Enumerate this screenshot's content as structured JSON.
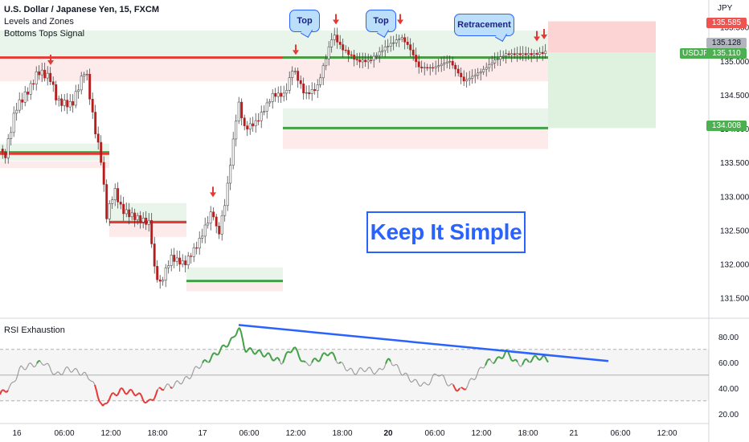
{
  "legend": {
    "title": "U.S. Dollar / Japanese Yen, 15, FXCM",
    "indicators": [
      "Levels and Zones",
      "Bottoms Tops Signal"
    ]
  },
  "rsi_panel": {
    "label": "RSI Exhaustion"
  },
  "annotations": {
    "callouts": [
      "Top",
      "Top",
      "Retracement"
    ],
    "headline": "Keep It Simple"
  },
  "price_scale": {
    "currency": "JPY",
    "tags": {
      "stop": "135.585",
      "current": "135.128",
      "symbol_label": "USDJPY",
      "symbol_price": "135.110",
      "target": "134.008"
    }
  },
  "colors": {
    "up": "#26a69a",
    "down": "#ef5350",
    "resistance": "#e53935",
    "support": "#43a047",
    "trendline": "#2962ff",
    "rsi_neutral": "#9e9e9e"
  },
  "chart_data": [
    {
      "type": "candlestick",
      "title": "U.S. Dollar / Japanese Yen, 15, FXCM",
      "ylim": [
        131.2,
        135.9
      ],
      "y_ticks": [
        "131.500",
        "132.000",
        "132.500",
        "133.000",
        "133.500",
        "134.000",
        "134.500",
        "135.000",
        "135.500"
      ],
      "x_ticks": [
        "16",
        "06:00",
        "12:00",
        "18:00",
        "17",
        "06:00",
        "12:00",
        "18:00",
        "20",
        "06:00",
        "12:00",
        "18:00",
        "21",
        "06:00",
        "12:00"
      ],
      "price_path": [
        [
          0,
          133.7
        ],
        [
          6,
          133.55
        ],
        [
          20,
          134.3
        ],
        [
          38,
          134.6
        ],
        [
          48,
          134.85
        ],
        [
          63,
          134.75
        ],
        [
          72,
          134.4
        ],
        [
          90,
          134.35
        ],
        [
          107,
          134.9
        ],
        [
          117,
          134.1
        ],
        [
          127,
          133.5
        ],
        [
          133,
          132.7
        ],
        [
          143,
          133.1
        ],
        [
          152,
          132.8
        ],
        [
          167,
          132.7
        ],
        [
          187,
          132.6
        ],
        [
          193,
          131.9
        ],
        [
          200,
          131.7
        ],
        [
          213,
          132.1
        ],
        [
          230,
          132.0
        ],
        [
          247,
          132.3
        ],
        [
          265,
          132.8
        ],
        [
          272,
          132.4
        ],
        [
          282,
          133.0
        ],
        [
          297,
          134.4
        ],
        [
          305,
          134.0
        ],
        [
          320,
          134.1
        ],
        [
          340,
          134.5
        ],
        [
          355,
          134.5
        ],
        [
          365,
          134.9
        ],
        [
          380,
          134.5
        ],
        [
          395,
          134.6
        ],
        [
          415,
          135.4
        ],
        [
          425,
          135.2
        ],
        [
          445,
          135.0
        ],
        [
          460,
          135.0
        ],
        [
          480,
          135.2
        ],
        [
          500,
          135.35
        ],
        [
          510,
          135.2
        ],
        [
          522,
          134.9
        ],
        [
          540,
          134.9
        ],
        [
          560,
          135.0
        ],
        [
          578,
          134.7
        ],
        [
          600,
          134.85
        ],
        [
          615,
          135.0
        ],
        [
          630,
          135.1
        ],
        [
          650,
          135.1
        ],
        [
          665,
          135.1
        ],
        [
          680,
          135.13
        ]
      ],
      "levels": [
        {
          "kind": "resistance",
          "value": 135.05
        },
        {
          "kind": "support",
          "value": 133.65
        },
        {
          "kind": "resistance",
          "value": 133.63
        },
        {
          "kind": "support",
          "value": 132.62
        },
        {
          "kind": "resistance",
          "value": 132.62
        },
        {
          "kind": "support",
          "value": 131.75
        },
        {
          "kind": "support",
          "value": 134.008
        },
        {
          "kind": "support",
          "value": 135.05
        }
      ],
      "position": {
        "entry": 135.128,
        "stop": 135.585,
        "target": 134.008
      },
      "signals": [
        {
          "bar_x": 63,
          "price": 134.95
        },
        {
          "bar_x": 265,
          "price": 133.0
        },
        {
          "bar_x": 368,
          "price": 135.1
        },
        {
          "bar_x": 418,
          "price": 135.55
        },
        {
          "bar_x": 498,
          "price": 135.55
        },
        {
          "bar_x": 668,
          "price": 135.3
        },
        {
          "bar_x": 677,
          "price": 135.33
        }
      ]
    },
    {
      "type": "line",
      "title": "RSI Exhaustion",
      "ylim": [
        13,
        93
      ],
      "y_ticks": [
        "20.00",
        "40.00",
        "60.00",
        "80.00"
      ],
      "bands": [
        30,
        50,
        70
      ],
      "values": [
        [
          0,
          35
        ],
        [
          15,
          42
        ],
        [
          25,
          55
        ],
        [
          40,
          58
        ],
        [
          55,
          60
        ],
        [
          70,
          50
        ],
        [
          85,
          55
        ],
        [
          100,
          52
        ],
        [
          112,
          48
        ],
        [
          120,
          38
        ],
        [
          128,
          24
        ],
        [
          135,
          32
        ],
        [
          150,
          38
        ],
        [
          170,
          36
        ],
        [
          185,
          28
        ],
        [
          200,
          40
        ],
        [
          215,
          42
        ],
        [
          235,
          48
        ],
        [
          245,
          56
        ],
        [
          260,
          62
        ],
        [
          275,
          70
        ],
        [
          290,
          78
        ],
        [
          297,
          88
        ],
        [
          305,
          70
        ],
        [
          320,
          68
        ],
        [
          335,
          65
        ],
        [
          350,
          60
        ],
        [
          365,
          72
        ],
        [
          380,
          58
        ],
        [
          395,
          62
        ],
        [
          410,
          68
        ],
        [
          425,
          58
        ],
        [
          440,
          52
        ],
        [
          455,
          55
        ],
        [
          470,
          52
        ],
        [
          485,
          62
        ],
        [
          500,
          52
        ],
        [
          515,
          45
        ],
        [
          530,
          42
        ],
        [
          545,
          52
        ],
        [
          560,
          42
        ],
        [
          575,
          38
        ],
        [
          590,
          48
        ],
        [
          605,
          60
        ],
        [
          620,
          62
        ],
        [
          630,
          68
        ],
        [
          645,
          58
        ],
        [
          660,
          62
        ],
        [
          670,
          64
        ],
        [
          683,
          62
        ]
      ],
      "trendline": [
        [
          297,
          89
        ],
        [
          757,
          61
        ]
      ]
    }
  ]
}
